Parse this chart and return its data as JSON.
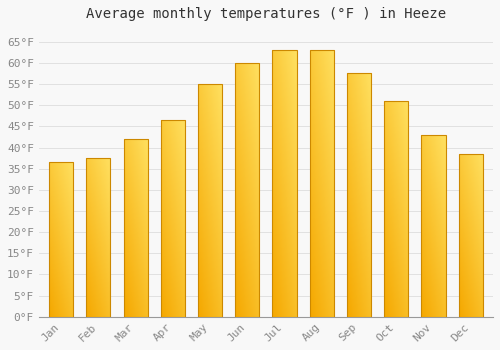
{
  "title": "Average monthly temperatures (°F ) in Heeze",
  "months": [
    "Jan",
    "Feb",
    "Mar",
    "Apr",
    "May",
    "Jun",
    "Jul",
    "Aug",
    "Sep",
    "Oct",
    "Nov",
    "Dec"
  ],
  "values": [
    36.5,
    37.5,
    42,
    46.5,
    55,
    60,
    63,
    63,
    57.5,
    51,
    43,
    38.5
  ],
  "bar_color_bottom": "#F5A800",
  "bar_color_top": "#FFE060",
  "bar_color_edge": "#CC8800",
  "background_color": "#F8F8F8",
  "plot_bg_color": "#F8F8F8",
  "grid_color": "#DDDDDD",
  "ylim": [
    0,
    68
  ],
  "yticks": [
    0,
    5,
    10,
    15,
    20,
    25,
    30,
    35,
    40,
    45,
    50,
    55,
    60,
    65
  ],
  "ylabel_suffix": "°F",
  "title_fontsize": 10,
  "tick_fontsize": 8,
  "tick_color": "#888888",
  "title_color": "#333333",
  "font_family": "monospace",
  "bar_width": 0.65
}
